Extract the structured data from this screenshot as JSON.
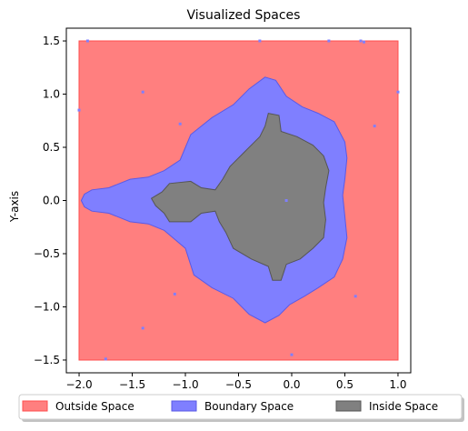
{
  "chart_data": {
    "type": "area",
    "title": "Visualized Spaces",
    "xlabel": "",
    "ylabel": "Y-axis",
    "xlim": [
      -2.12,
      1.12
    ],
    "ylim": [
      -1.62,
      1.62
    ],
    "x_ticks": [
      -2.0,
      -1.5,
      -1.0,
      -0.5,
      0.0,
      0.5,
      1.0
    ],
    "y_ticks": [
      -1.5,
      -1.0,
      -0.5,
      0.0,
      0.5,
      1.0,
      1.5
    ],
    "x_tick_labels": [
      "−2.0",
      "−1.5",
      "−1.0",
      "−0.5",
      "0.0",
      "0.5",
      "1.0"
    ],
    "y_tick_labels": [
      "−1.5",
      "−1.0",
      "−0.5",
      "0.0",
      "0.5",
      "1.0",
      "1.5"
    ],
    "grid": false,
    "legend_placement": "bottom-center",
    "series": [
      {
        "name": "Outside Space",
        "color": "#ff7f7f",
        "edge": "#ff4d4d",
        "points": [
          [
            -2.0,
            -1.5
          ],
          [
            1.0,
            -1.5
          ],
          [
            1.0,
            1.5
          ],
          [
            -2.0,
            1.5
          ]
        ]
      },
      {
        "name": "Boundary Space",
        "color": "#7f7fff",
        "edge": "#5a5ae6",
        "points": [
          [
            -0.25,
            1.16
          ],
          [
            -0.15,
            1.13
          ],
          [
            -0.05,
            0.98
          ],
          [
            0.1,
            0.88
          ],
          [
            0.25,
            0.82
          ],
          [
            0.4,
            0.74
          ],
          [
            0.5,
            0.55
          ],
          [
            0.52,
            0.4
          ],
          [
            0.5,
            0.2
          ],
          [
            0.48,
            0.05
          ],
          [
            0.5,
            -0.15
          ],
          [
            0.52,
            -0.35
          ],
          [
            0.48,
            -0.55
          ],
          [
            0.4,
            -0.72
          ],
          [
            0.25,
            -0.82
          ],
          [
            0.12,
            -0.9
          ],
          [
            -0.02,
            -0.98
          ],
          [
            -0.12,
            -1.08
          ],
          [
            -0.25,
            -1.15
          ],
          [
            -0.4,
            -1.07
          ],
          [
            -0.55,
            -0.92
          ],
          [
            -0.75,
            -0.82
          ],
          [
            -0.92,
            -0.7
          ],
          [
            -1.0,
            -0.45
          ],
          [
            -1.2,
            -0.28
          ],
          [
            -1.35,
            -0.22
          ],
          [
            -1.52,
            -0.2
          ],
          [
            -1.72,
            -0.12
          ],
          [
            -1.88,
            -0.1
          ],
          [
            -1.95,
            -0.06
          ],
          [
            -1.98,
            0.0
          ],
          [
            -1.95,
            0.06
          ],
          [
            -1.88,
            0.1
          ],
          [
            -1.72,
            0.12
          ],
          [
            -1.52,
            0.2
          ],
          [
            -1.35,
            0.22
          ],
          [
            -1.2,
            0.28
          ],
          [
            -1.05,
            0.38
          ],
          [
            -0.95,
            0.62
          ],
          [
            -0.75,
            0.78
          ],
          [
            -0.55,
            0.9
          ],
          [
            -0.4,
            1.05
          ]
        ]
      },
      {
        "name": "Inside Space",
        "color": "#808080",
        "edge": "#555555",
        "points": [
          [
            -0.22,
            0.82
          ],
          [
            -0.12,
            0.8
          ],
          [
            -0.1,
            0.65
          ],
          [
            0.05,
            0.6
          ],
          [
            0.2,
            0.52
          ],
          [
            0.3,
            0.42
          ],
          [
            0.35,
            0.28
          ],
          [
            0.32,
            0.12
          ],
          [
            0.3,
            -0.02
          ],
          [
            0.32,
            -0.18
          ],
          [
            0.3,
            -0.35
          ],
          [
            0.2,
            -0.45
          ],
          [
            0.08,
            -0.55
          ],
          [
            -0.05,
            -0.6
          ],
          [
            -0.1,
            -0.75
          ],
          [
            -0.18,
            -0.75
          ],
          [
            -0.22,
            -0.62
          ],
          [
            -0.38,
            -0.55
          ],
          [
            -0.55,
            -0.45
          ],
          [
            -0.62,
            -0.3
          ],
          [
            -0.68,
            -0.2
          ],
          [
            -0.72,
            -0.1
          ],
          [
            -0.85,
            -0.12
          ],
          [
            -0.95,
            -0.2
          ],
          [
            -1.15,
            -0.2
          ],
          [
            -1.2,
            -0.12
          ],
          [
            -1.28,
            -0.05
          ],
          [
            -1.32,
            0.02
          ],
          [
            -1.22,
            0.08
          ],
          [
            -1.15,
            0.16
          ],
          [
            -0.95,
            0.18
          ],
          [
            -0.85,
            0.12
          ],
          [
            -0.72,
            0.1
          ],
          [
            -0.65,
            0.2
          ],
          [
            -0.58,
            0.32
          ],
          [
            -0.45,
            0.45
          ],
          [
            -0.35,
            0.55
          ],
          [
            -0.3,
            0.6
          ],
          [
            -0.25,
            0.7
          ]
        ]
      }
    ],
    "specks": [
      [
        -1.92,
        1.5
      ],
      [
        -0.3,
        1.5
      ],
      [
        0.35,
        1.5
      ],
      [
        0.65,
        1.5
      ],
      [
        0.68,
        1.49
      ],
      [
        -1.4,
        1.02
      ],
      [
        -1.05,
        0.72
      ],
      [
        -2.0,
        0.85
      ],
      [
        1.0,
        1.02
      ],
      [
        0.78,
        0.7
      ],
      [
        -0.65,
        -0.5
      ],
      [
        -0.05,
        0.0
      ],
      [
        -1.1,
        -0.88
      ],
      [
        0.6,
        -0.9
      ],
      [
        0.0,
        -1.45
      ],
      [
        -1.75,
        -1.49
      ],
      [
        -1.4,
        -1.2
      ]
    ]
  }
}
